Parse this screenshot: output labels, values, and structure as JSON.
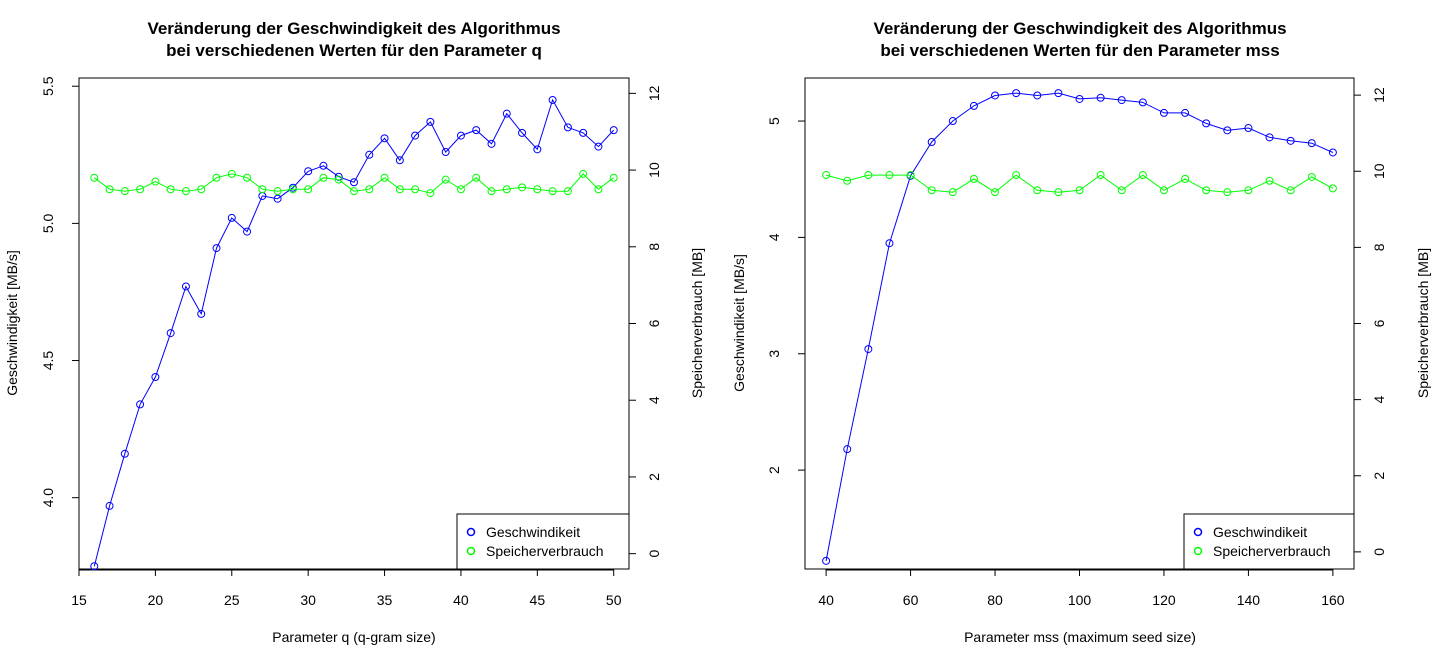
{
  "chart_data": [
    {
      "type": "line",
      "title_line1": "Veränderung der Geschwindigkeit des Algorithmus",
      "title_line2": "bei verschiedenen Werten für den Parameter q",
      "xlabel": "Parameter q (q-gram size)",
      "ylabel_left": "Geschwindigkeit [MB/s]",
      "ylabel_right": "Speicherverbrauch [MB]",
      "x": [
        16,
        17,
        18,
        19,
        20,
        21,
        22,
        23,
        24,
        25,
        26,
        27,
        28,
        29,
        30,
        31,
        32,
        33,
        34,
        35,
        36,
        37,
        38,
        39,
        40,
        41,
        42,
        43,
        44,
        45,
        46,
        47,
        48,
        49,
        50
      ],
      "xlim": [
        15,
        51
      ],
      "xticks": [
        15,
        20,
        25,
        30,
        35,
        40,
        45,
        50
      ],
      "y_left_lim": [
        3.74,
        5.53
      ],
      "y_left_ticks": [
        "4.0",
        "4.5",
        "5.0",
        "5.5"
      ],
      "y_right_lim": [
        -0.4,
        12.4
      ],
      "y_right_ticks": [
        "0",
        "2",
        "4",
        "6",
        "8",
        "10",
        "12"
      ],
      "series": [
        {
          "name": "Geschwindikeit",
          "axis": "left",
          "color": "#0000ff",
          "values": [
            3.75,
            3.97,
            4.16,
            4.34,
            4.44,
            4.6,
            4.77,
            4.67,
            4.91,
            5.02,
            4.97,
            5.1,
            5.09,
            5.13,
            5.19,
            5.21,
            5.17,
            5.15,
            5.25,
            5.31,
            5.23,
            5.32,
            5.37,
            5.26,
            5.32,
            5.34,
            5.29,
            5.4,
            5.33,
            5.27,
            5.45,
            5.35,
            5.33,
            5.28,
            5.34
          ]
        },
        {
          "name": "Speicherverbrauch",
          "axis": "right",
          "color": "#00ff00",
          "values": [
            9.8,
            9.5,
            9.45,
            9.5,
            9.7,
            9.5,
            9.45,
            9.5,
            9.8,
            9.9,
            9.8,
            9.5,
            9.45,
            9.5,
            9.5,
            9.8,
            9.75,
            9.45,
            9.5,
            9.8,
            9.5,
            9.5,
            9.4,
            9.75,
            9.5,
            9.8,
            9.45,
            9.5,
            9.55,
            9.5,
            9.45,
            9.45,
            9.9,
            9.5,
            9.8
          ]
        }
      ],
      "legend_position": "bottom-right",
      "grid": false
    },
    {
      "type": "line",
      "title_line1": "Veränderung der Geschwindigkeit des Algorithmus",
      "title_line2": "bei verschiedenen Werten für den Parameter mss",
      "xlabel": "Parameter mss (maximum seed size)",
      "ylabel_left": "Geschwindikeit [MB/s]",
      "ylabel_right": "Speicherverbrauch [MB]",
      "x": [
        40,
        45,
        50,
        55,
        60,
        65,
        70,
        75,
        80,
        85,
        90,
        95,
        100,
        105,
        110,
        115,
        120,
        125,
        130,
        135,
        140,
        145,
        150,
        155,
        160
      ],
      "xlim": [
        35,
        165
      ],
      "xticks": [
        40,
        60,
        80,
        100,
        120,
        140,
        160
      ],
      "y_left_lim": [
        1.15,
        5.37
      ],
      "y_left_ticks": [
        "2",
        "3",
        "4",
        "5"
      ],
      "y_right_lim": [
        -0.45,
        12.45
      ],
      "y_right_ticks": [
        "0",
        "2",
        "4",
        "6",
        "8",
        "10",
        "12"
      ],
      "series": [
        {
          "name": "Geschwindikeit",
          "axis": "left",
          "color": "#0000ff",
          "values": [
            1.22,
            2.18,
            3.04,
            3.95,
            4.53,
            4.82,
            5.0,
            5.13,
            5.22,
            5.24,
            5.22,
            5.24,
            5.19,
            5.2,
            5.18,
            5.16,
            5.07,
            5.07,
            4.98,
            4.92,
            4.94,
            4.86,
            4.83,
            4.81,
            4.73
          ]
        },
        {
          "name": "Speicherverbrauch",
          "axis": "right",
          "color": "#00ff00",
          "values": [
            9.9,
            9.75,
            9.9,
            9.9,
            9.9,
            9.5,
            9.45,
            9.8,
            9.45,
            9.9,
            9.5,
            9.45,
            9.5,
            9.9,
            9.5,
            9.9,
            9.5,
            9.8,
            9.5,
            9.45,
            9.5,
            9.75,
            9.5,
            9.85,
            9.55
          ]
        }
      ],
      "legend_position": "bottom-right",
      "grid": false
    }
  ]
}
